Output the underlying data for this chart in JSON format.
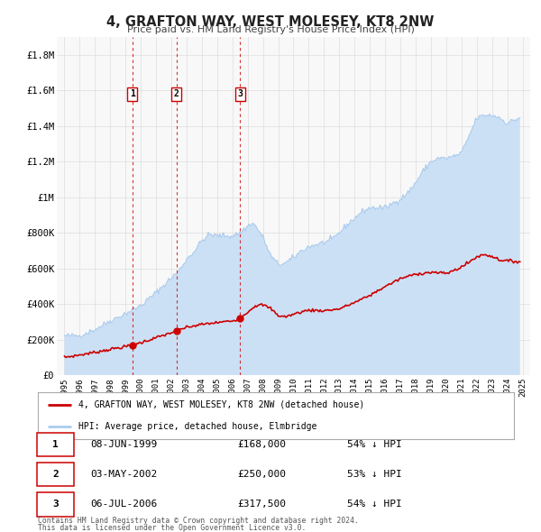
{
  "title": "4, GRAFTON WAY, WEST MOLESEY, KT8 2NW",
  "subtitle": "Price paid vs. HM Land Registry's House Price Index (HPI)",
  "xlim": [
    1994.5,
    2025.5
  ],
  "ylim": [
    0,
    1900000
  ],
  "yticks": [
    0,
    200000,
    400000,
    600000,
    800000,
    1000000,
    1200000,
    1400000,
    1600000,
    1800000
  ],
  "ytick_labels": [
    "£0",
    "£200K",
    "£400K",
    "£600K",
    "£800K",
    "£1M",
    "£1.2M",
    "£1.4M",
    "£1.6M",
    "£1.8M"
  ],
  "xticks": [
    1995,
    1996,
    1997,
    1998,
    1999,
    2000,
    2001,
    2002,
    2003,
    2004,
    2005,
    2006,
    2007,
    2008,
    2009,
    2010,
    2011,
    2012,
    2013,
    2014,
    2015,
    2016,
    2017,
    2018,
    2019,
    2020,
    2021,
    2022,
    2023,
    2024,
    2025
  ],
  "hpi_color": "#aaccee",
  "hpi_fill_color": "#cce0f5",
  "price_color": "#cc0000",
  "vline_color": "#cc0000",
  "grid_color": "#dddddd",
  "background_color": "#f8f8f8",
  "legend_label_price": "4, GRAFTON WAY, WEST MOLESEY, KT8 2NW (detached house)",
  "legend_label_hpi": "HPI: Average price, detached house, Elmbridge",
  "transactions": [
    {
      "num": 1,
      "year": 1999.44,
      "price": 168000,
      "date": "08-JUN-1999",
      "pct": "54%"
    },
    {
      "num": 2,
      "year": 2002.33,
      "price": 250000,
      "date": "03-MAY-2002",
      "pct": "53%"
    },
    {
      "num": 3,
      "year": 2006.5,
      "price": 317500,
      "date": "06-JUL-2006",
      "pct": "54%"
    }
  ],
  "footer_line1": "Contains HM Land Registry data © Crown copyright and database right 2024.",
  "footer_line2": "This data is licensed under the Open Government Licence v3.0."
}
